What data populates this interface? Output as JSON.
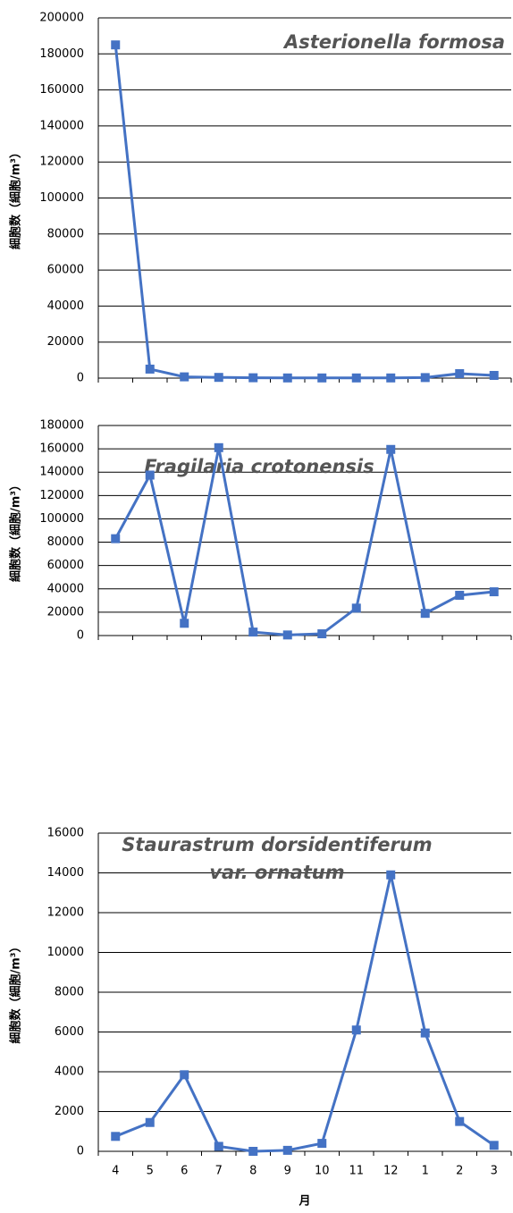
{
  "chart_data": [
    {
      "type": "line",
      "title": [
        "Asterionella formosa"
      ],
      "y_label": "細胞数（細胞/m³）",
      "categories": [
        null,
        null,
        null,
        null,
        null,
        null,
        null,
        null,
        null,
        null,
        null,
        null
      ],
      "series": [
        {
          "color": "#4472c4",
          "values": [
            185000,
            5000,
            700,
            400,
            200,
            100,
            100,
            100,
            100,
            300,
            2500,
            1500
          ]
        }
      ],
      "ylim": [
        0,
        200000
      ],
      "yticks": [
        0,
        20000,
        40000,
        60000,
        80000,
        100000,
        120000,
        140000,
        160000,
        180000,
        200000
      ],
      "grid": true
    },
    {
      "type": "line",
      "title": [
        "Fragilaria crotonensis"
      ],
      "y_label": "細胞数（細胞/m³）",
      "categories": [
        null,
        null,
        null,
        null,
        null,
        null,
        null,
        null,
        null,
        null,
        null,
        null
      ],
      "series": [
        {
          "color": "#4472c4",
          "values": [
            83000,
            137500,
            10500,
            161000,
            3000,
            500,
            1500,
            23500,
            159500,
            19000,
            34500,
            37500
          ]
        }
      ],
      "ylim": [
        0,
        180000
      ],
      "yticks": [
        0,
        20000,
        40000,
        60000,
        80000,
        100000,
        120000,
        140000,
        160000,
        180000
      ],
      "grid": true
    },
    {
      "type": "line",
      "title": [
        "Staurastrum dorsidentiferum",
        "var. ornatum"
      ],
      "y_label": "細胞数（細胞/m³）",
      "x_label": "月",
      "categories": [
        "4",
        "5",
        "6",
        "7",
        "8",
        "9",
        "10",
        "11",
        "12",
        "1",
        "2",
        "3"
      ],
      "series": [
        {
          "color": "#4472c4",
          "values": [
            750,
            1450,
            3850,
            250,
            0,
            50,
            400,
            6100,
            13900,
            5950,
            1500,
            300
          ]
        }
      ],
      "ylim": [
        0,
        16000
      ],
      "yticks": [
        0,
        2000,
        4000,
        6000,
        8000,
        10000,
        12000,
        14000,
        16000
      ],
      "grid": true
    }
  ]
}
